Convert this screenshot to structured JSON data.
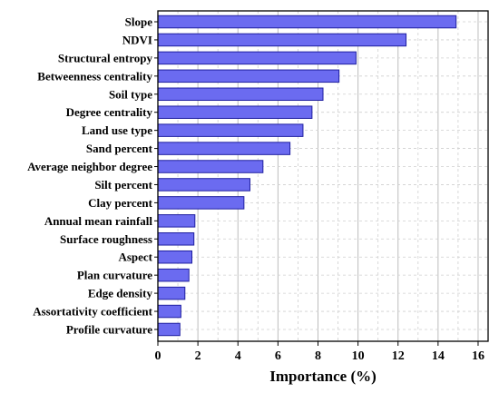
{
  "chart_data": {
    "type": "bar",
    "orientation": "horizontal",
    "categories": [
      "Slope",
      "NDVI",
      "Structural entropy",
      "Betweenness centrality",
      "Soil type",
      "Degree centrality",
      "Land use type",
      "Sand percent",
      "Average neighbor degree",
      "Silt percent",
      "Clay percent",
      "Annual mean rainfall",
      "Surface roughness",
      "Aspect",
      "Plan curvature",
      "Edge density",
      "Assortativity coefficient",
      "Profile curvature"
    ],
    "values": [
      14.9,
      12.4,
      9.9,
      9.05,
      8.25,
      7.7,
      7.25,
      6.6,
      5.25,
      4.6,
      4.3,
      1.85,
      1.8,
      1.7,
      1.55,
      1.35,
      1.15,
      1.1
    ],
    "xlabel": "Importance (%)",
    "ylabel": "",
    "xlim": [
      0,
      16.5
    ],
    "xticks": [
      0,
      2,
      4,
      6,
      8,
      10,
      12,
      14,
      16
    ],
    "grid": true,
    "bar_color": "#6b6bf0",
    "bar_edge_color": "#1f1fa0"
  }
}
